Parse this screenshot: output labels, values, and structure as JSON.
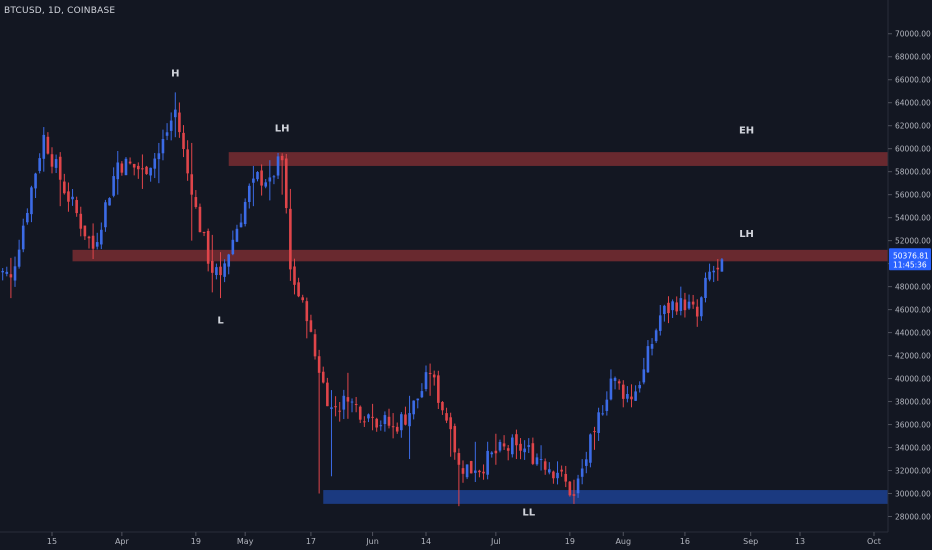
{
  "title": "BTCUSD, 1D, COINBASE",
  "price_badge": {
    "price": "50376.81",
    "countdown": "11:45:36"
  },
  "colors": {
    "background": "#131722",
    "up": "#3c6be6",
    "down": "#e0454a",
    "resistance_zone": "#6e2a30",
    "support_zone": "#1b3c86",
    "axis_text": "#b2b5be",
    "badge": "#2962ff"
  },
  "chart_data": {
    "type": "candlestick",
    "x_ticks": [
      "15",
      "Apr",
      "19",
      "May",
      "17",
      "Jun",
      "14",
      "Jul",
      "19",
      "Aug",
      "16",
      "Sep",
      "13",
      "Oct"
    ],
    "y_ticks": [
      "70000.00",
      "68000.00",
      "66000.00",
      "64000.00",
      "62000.00",
      "60000.00",
      "58000.00",
      "56000.00",
      "54000.00",
      "52000.00",
      "50000.00",
      "48000.00",
      "46000.00",
      "44000.00",
      "42000.00",
      "40000.00",
      "38000.00",
      "36000.00",
      "34000.00",
      "32000.00",
      "30000.00",
      "28000.00"
    ],
    "ylim": [
      27000,
      71500
    ],
    "zones": [
      {
        "kind": "resistance",
        "from": 58500,
        "to": 59700,
        "start": "Apr 27"
      },
      {
        "kind": "resistance",
        "from": 50200,
        "to": 51200,
        "start": "Mar 20"
      },
      {
        "kind": "support",
        "from": 29100,
        "to": 30300,
        "start": "May 20"
      }
    ],
    "annotations": [
      {
        "text": "H",
        "date": "Apr 14",
        "price": 66300
      },
      {
        "text": "LH",
        "date": "May 10",
        "price": 61500
      },
      {
        "text": "L",
        "date": "Apr 25",
        "price": 44800
      },
      {
        "text": "EH",
        "date": "Aug 31",
        "price": 61300
      },
      {
        "text": "LH",
        "date": "Aug 31",
        "price": 52300
      },
      {
        "text": "LL",
        "date": "Jul 09",
        "price": 28100
      }
    ],
    "ohlc_anchors": [
      [
        "Mar 01",
        49600,
        46000,
        52000
      ],
      [
        "Mar 05",
        48800,
        47000,
        50500
      ],
      [
        "Mar 13",
        61200,
        58000,
        61800
      ],
      [
        "Mar 17",
        57300,
        55000,
        59500
      ],
      [
        "Mar 25",
        51300,
        50400,
        53500
      ],
      [
        "Mar 31",
        58800,
        56000,
        59800
      ],
      [
        "Apr 06",
        58200,
        56500,
        59500
      ],
      [
        "Apr 10",
        59600,
        57000,
        60500
      ],
      [
        "Apr 14",
        63400,
        61000,
        64900
      ],
      [
        "Apr 18",
        56000,
        52000,
        60500
      ],
      [
        "Apr 23",
        49200,
        47500,
        52500
      ],
      [
        "Apr 25",
        49000,
        47000,
        51000
      ],
      [
        "May 03",
        57400,
        55000,
        58500
      ],
      [
        "May 07",
        57500,
        55500,
        59000
      ],
      [
        "May 10",
        59000,
        56000,
        59600
      ],
      [
        "May 12",
        49500,
        48500,
        56500
      ],
      [
        "May 16",
        45000,
        43500,
        47000
      ],
      [
        "May 19",
        40500,
        30000,
        42500
      ],
      [
        "May 22",
        37500,
        31500,
        39000
      ],
      [
        "May 26",
        38000,
        36500,
        40500
      ],
      [
        "Jun 01",
        36600,
        35500,
        37800
      ],
      [
        "Jun 06",
        35800,
        34800,
        37000
      ],
      [
        "Jun 10",
        37000,
        33000,
        38500
      ],
      [
        "Jun 15",
        40400,
        38500,
        41300
      ],
      [
        "Jun 20",
        35600,
        33200,
        36400
      ],
      [
        "Jun 22",
        32500,
        28900,
        33400
      ],
      [
        "Jun 26",
        32000,
        31000,
        34500
      ],
      [
        "Jul 01",
        33500,
        32500,
        35200
      ],
      [
        "Jul 06",
        34200,
        33000,
        35000
      ],
      [
        "Jul 12",
        33000,
        32000,
        34200
      ],
      [
        "Jul 16",
        31800,
        31000,
        32800
      ],
      [
        "Jul 20",
        29800,
        29300,
        31200
      ],
      [
        "Jul 25",
        35400,
        33800,
        35800
      ],
      [
        "Jul 29",
        40000,
        38500,
        40800
      ],
      [
        "Aug 03",
        38200,
        37500,
        39500
      ],
      [
        "Aug 06",
        40800,
        39500,
        41800
      ],
      [
        "Aug 10",
        45500,
        44500,
        46400
      ],
      [
        "Aug 15",
        47000,
        45500,
        48000
      ],
      [
        "Aug 19",
        45400,
        44500,
        46500
      ],
      [
        "Aug 22",
        49300,
        48500,
        50000
      ],
      [
        "Aug 24",
        49500,
        48500,
        50400
      ],
      [
        "Aug 25",
        50376.81,
        49800,
        50600
      ]
    ]
  }
}
